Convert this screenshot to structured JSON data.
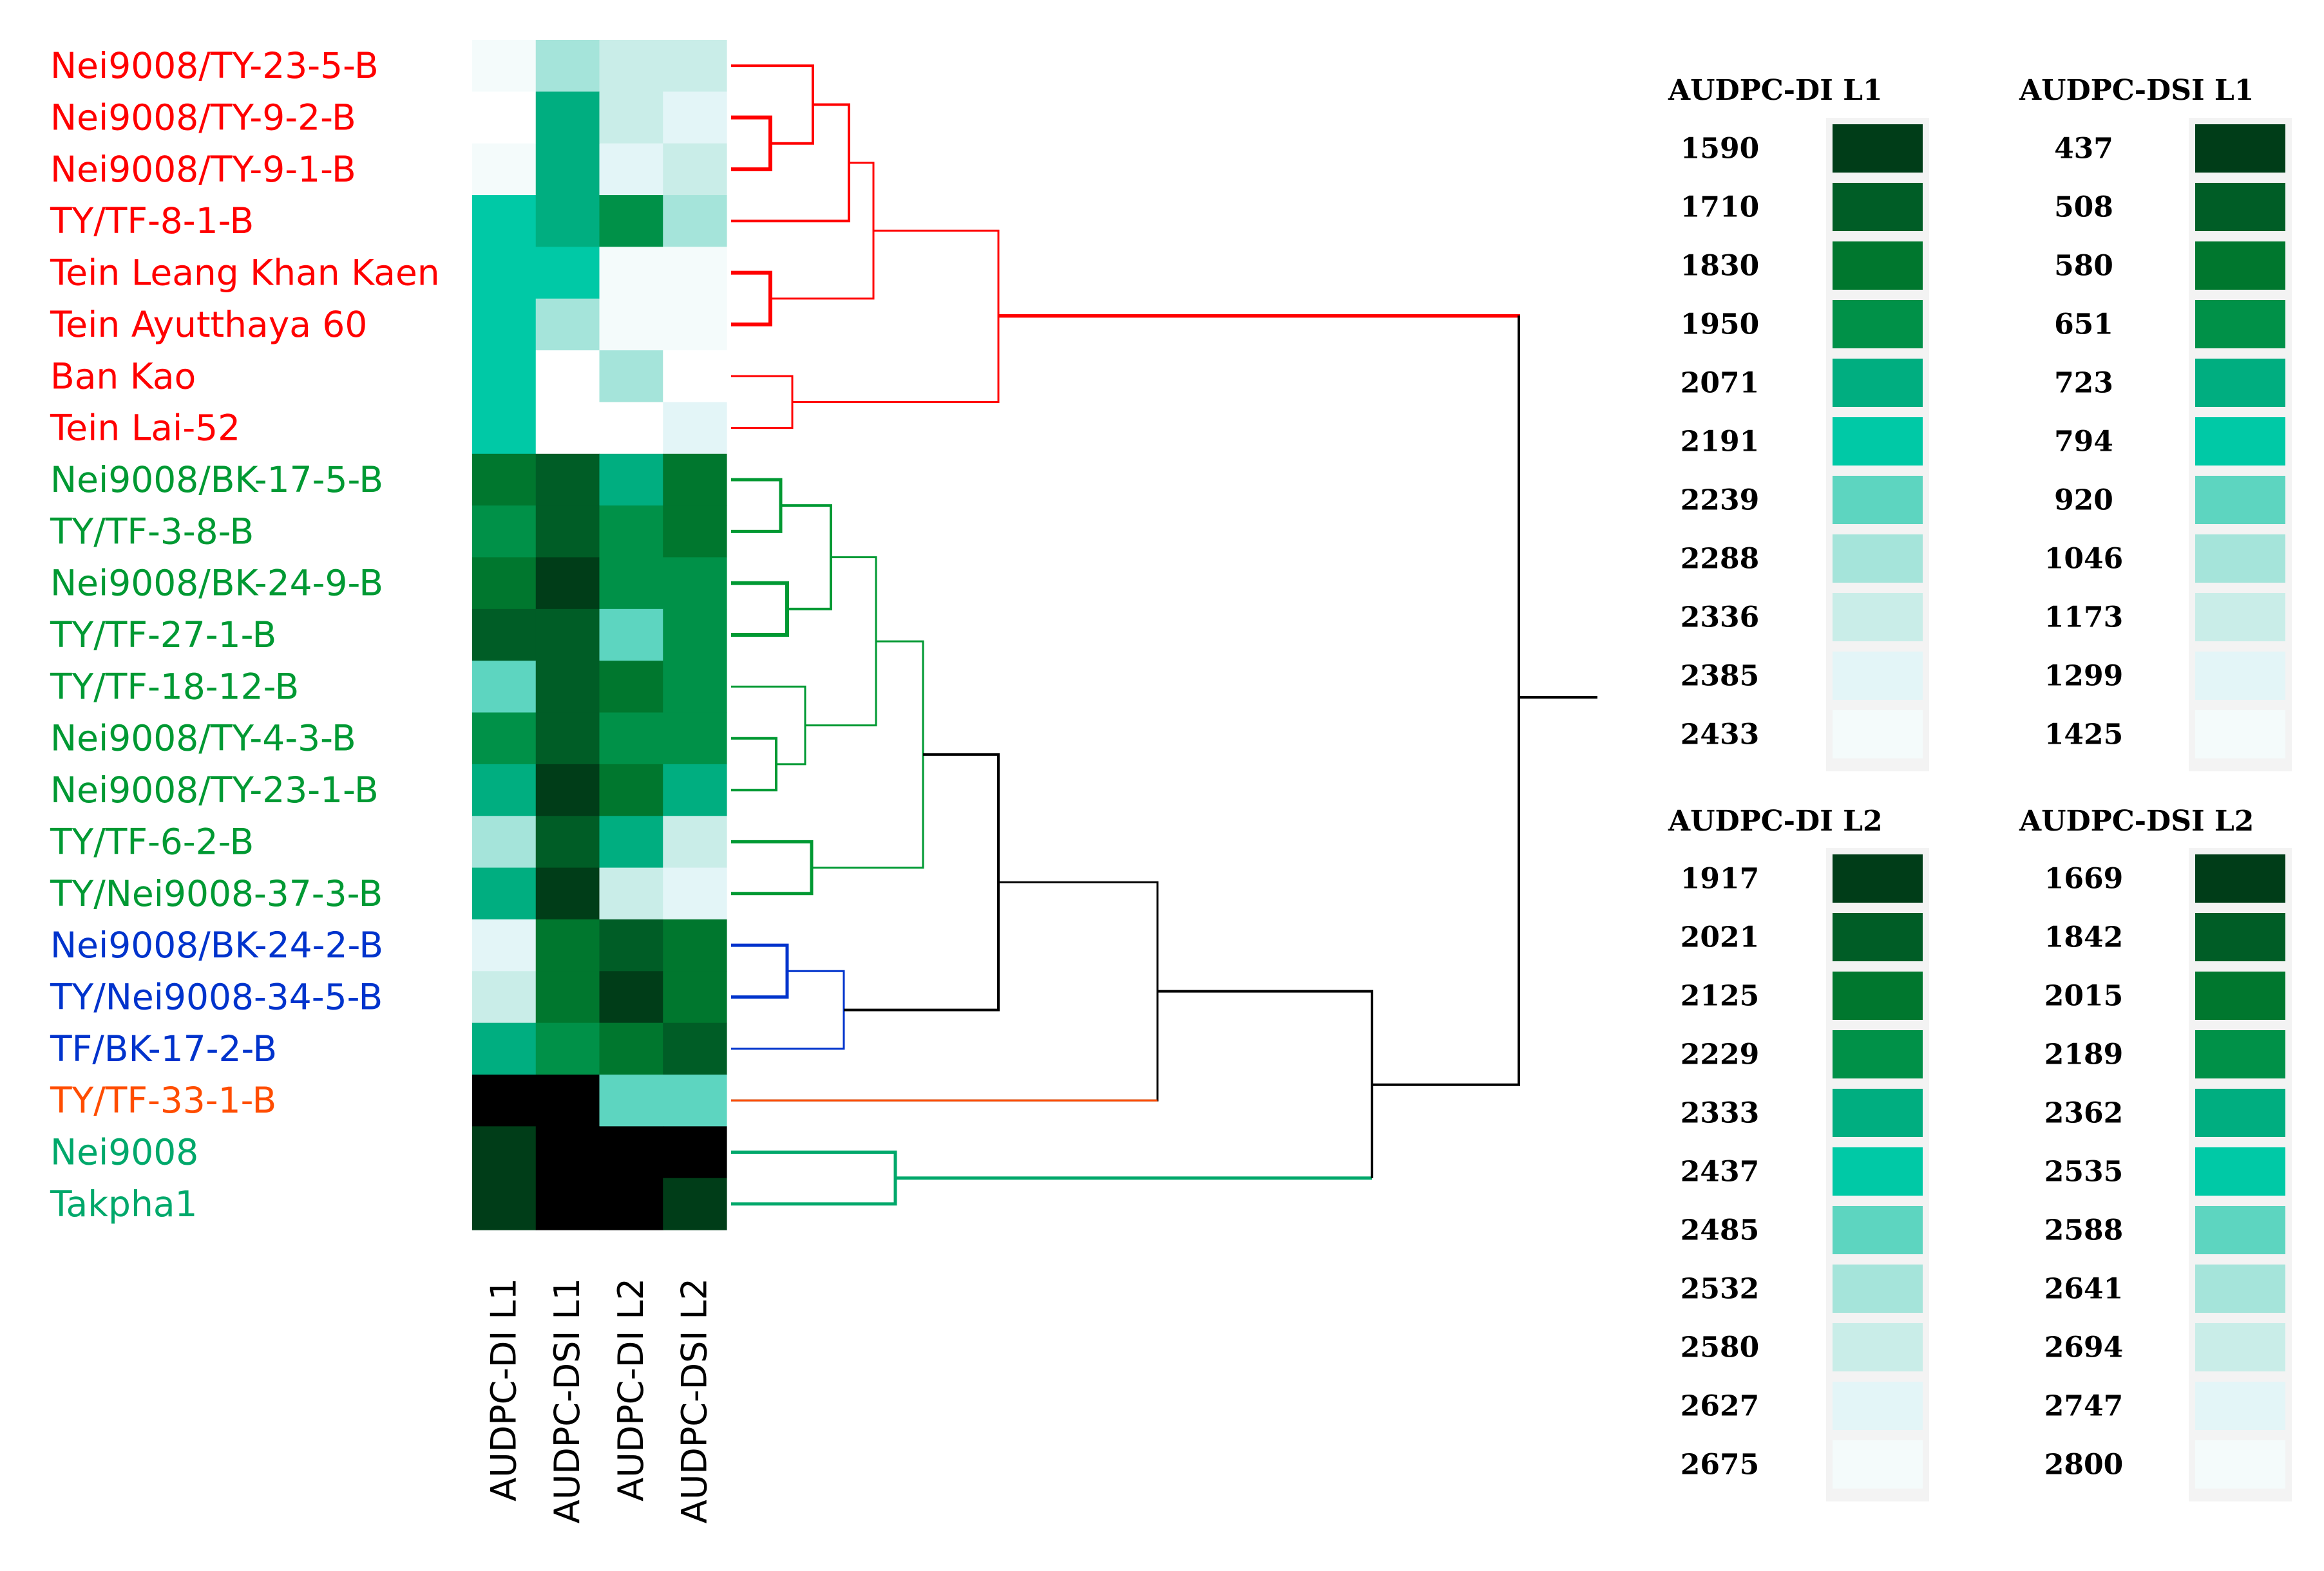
{
  "chart_data": {
    "type": "heatmap",
    "title": "",
    "rows": [
      {
        "label": "Nei9008/TY-23-5-B",
        "cluster": "red"
      },
      {
        "label": "Nei9008/TY-9-2-B",
        "cluster": "red"
      },
      {
        "label": "Nei9008/TY-9-1-B",
        "cluster": "red"
      },
      {
        "label": "TY/TF-8-1-B",
        "cluster": "red"
      },
      {
        "label": "Tein Leang Khan Kaen",
        "cluster": "red"
      },
      {
        "label": "Tein Ayutthaya 60",
        "cluster": "red"
      },
      {
        "label": "Ban Kao",
        "cluster": "red"
      },
      {
        "label": "Tein Lai-52",
        "cluster": "red"
      },
      {
        "label": "Nei9008/BK-17-5-B",
        "cluster": "green"
      },
      {
        "label": "TY/TF-3-8-B",
        "cluster": "green"
      },
      {
        "label": "Nei9008/BK-24-9-B",
        "cluster": "green"
      },
      {
        "label": "TY/TF-27-1-B",
        "cluster": "green"
      },
      {
        "label": "TY/TF-18-12-B",
        "cluster": "green"
      },
      {
        "label": "Nei9008/TY-4-3-B",
        "cluster": "green"
      },
      {
        "label": "Nei9008/TY-23-1-B",
        "cluster": "green"
      },
      {
        "label": "TY/TF-6-2-B",
        "cluster": "green"
      },
      {
        "label": "TY/Nei9008-37-3-B",
        "cluster": "green"
      },
      {
        "label": "Nei9008/BK-24-2-B",
        "cluster": "blue"
      },
      {
        "label": "TY/Nei9008-34-5-B",
        "cluster": "blue"
      },
      {
        "label": "TF/BK-17-2-B",
        "cluster": "blue"
      },
      {
        "label": "TY/TF-33-1-B",
        "cluster": "orange"
      },
      {
        "label": "Nei9008",
        "cluster": "teal"
      },
      {
        "label": "Takpha1",
        "cluster": "teal"
      }
    ],
    "columns": [
      "AUDPC-DI  L1",
      "AUDPC-DSI  L1",
      "AUDPC-DI  L2",
      "AUDPC-DSI  L2"
    ],
    "levels": [
      [
        10,
        7,
        8,
        8
      ],
      [
        11,
        4,
        8,
        9
      ],
      [
        10,
        4,
        9,
        8
      ],
      [
        5,
        4,
        3,
        7
      ],
      [
        5,
        5,
        10,
        10
      ],
      [
        5,
        7,
        10,
        10
      ],
      [
        5,
        11,
        7,
        11
      ],
      [
        5,
        11,
        11,
        9
      ],
      [
        2,
        1,
        4,
        2
      ],
      [
        3,
        1,
        3,
        2
      ],
      [
        2,
        0,
        3,
        3
      ],
      [
        1,
        1,
        6,
        3
      ],
      [
        6,
        1,
        2,
        3
      ],
      [
        3,
        1,
        3,
        3
      ],
      [
        4,
        0,
        2,
        4
      ],
      [
        7,
        1,
        4,
        8
      ],
      [
        4,
        0,
        8,
        9
      ],
      [
        9,
        2,
        1,
        2
      ],
      [
        8,
        2,
        0,
        2
      ],
      [
        4,
        3,
        2,
        1
      ],
      [
        -1,
        -1,
        6,
        6
      ],
      [
        0,
        -1,
        -1,
        -1
      ],
      [
        0,
        -1,
        -1,
        0
      ]
    ],
    "palette": [
      "#003d18",
      "#005d26",
      "#00772e",
      "#009148",
      "#00ae80",
      "#00c9a6",
      "#5dd5c0",
      "#a5e4da",
      "#c9ede8",
      "#e3f5f7",
      "#f4fbfb",
      "#ffffff"
    ],
    "black": "#000000",
    "cluster_colors": {
      "red": "#ff0000",
      "green": "#009933",
      "blue": "#0033cc",
      "orange": "#ff4d00",
      "teal": "#00a86b",
      "root": "#000000"
    },
    "legends": [
      {
        "title": "AUDPC-DI  L1",
        "values": [
          "1590",
          "1710",
          "1830",
          "1950",
          "2071",
          "2191",
          "2239",
          "2288",
          "2336",
          "2385",
          "2433"
        ]
      },
      {
        "title": "AUDPC-DSI  L1",
        "values": [
          "437",
          "508",
          "580",
          "651",
          "723",
          "794",
          "920",
          "1046",
          "1173",
          "1299",
          "1425"
        ]
      },
      {
        "title": "AUDPC-DI  L2",
        "values": [
          "1917",
          "2021",
          "2125",
          "2229",
          "2333",
          "2437",
          "2485",
          "2532",
          "2580",
          "2627",
          "2675"
        ]
      },
      {
        "title": "AUDPC-DSI  L2",
        "values": [
          "1669",
          "1842",
          "2015",
          "2189",
          "2362",
          "2535",
          "2588",
          "2641",
          "2694",
          "2747",
          "2800"
        ]
      }
    ]
  }
}
